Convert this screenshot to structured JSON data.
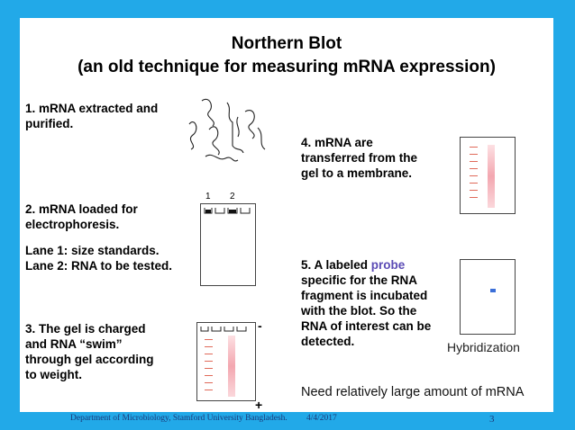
{
  "title_line1": "Northern Blot",
  "title_line2": "(an old technique for measuring mRNA expression)",
  "step1": [
    "1. mRNA extracted and",
    "purified."
  ],
  "step2": [
    "2. mRNA loaded for",
    "electrophoresis."
  ],
  "lane_info": [
    "Lane 1: size standards.",
    "Lane 2: RNA to be tested."
  ],
  "step3": [
    "3. The gel is charged",
    "and RNA “swim”",
    "through gel according",
    "to weight."
  ],
  "step4": [
    "4. mRNA are",
    "transferred from the",
    "gel to a membrane."
  ],
  "step5_line1_prefix": "5. A labeled ",
  "step5_probe": "probe",
  "step5_rest": [
    "specific for the RNA",
    "fragment is incubated",
    "with the blot. So the",
    "RNA of interest can be",
    "detected."
  ],
  "lane_labels": [
    "1",
    "2"
  ],
  "minus_sign": "-",
  "plus_sign": "+",
  "hybridization_label": "Hybridization",
  "bottom_note": "Need relatively large amount of mRNA",
  "footer": {
    "department": "Department of Microbiology, Stamford University Bangladesh.",
    "date": "4/4/2017",
    "page": "3"
  },
  "colors": {
    "background": "#22a9e8",
    "probe_text": "#5b4bb5",
    "footer_text": "#1b3a7a"
  }
}
